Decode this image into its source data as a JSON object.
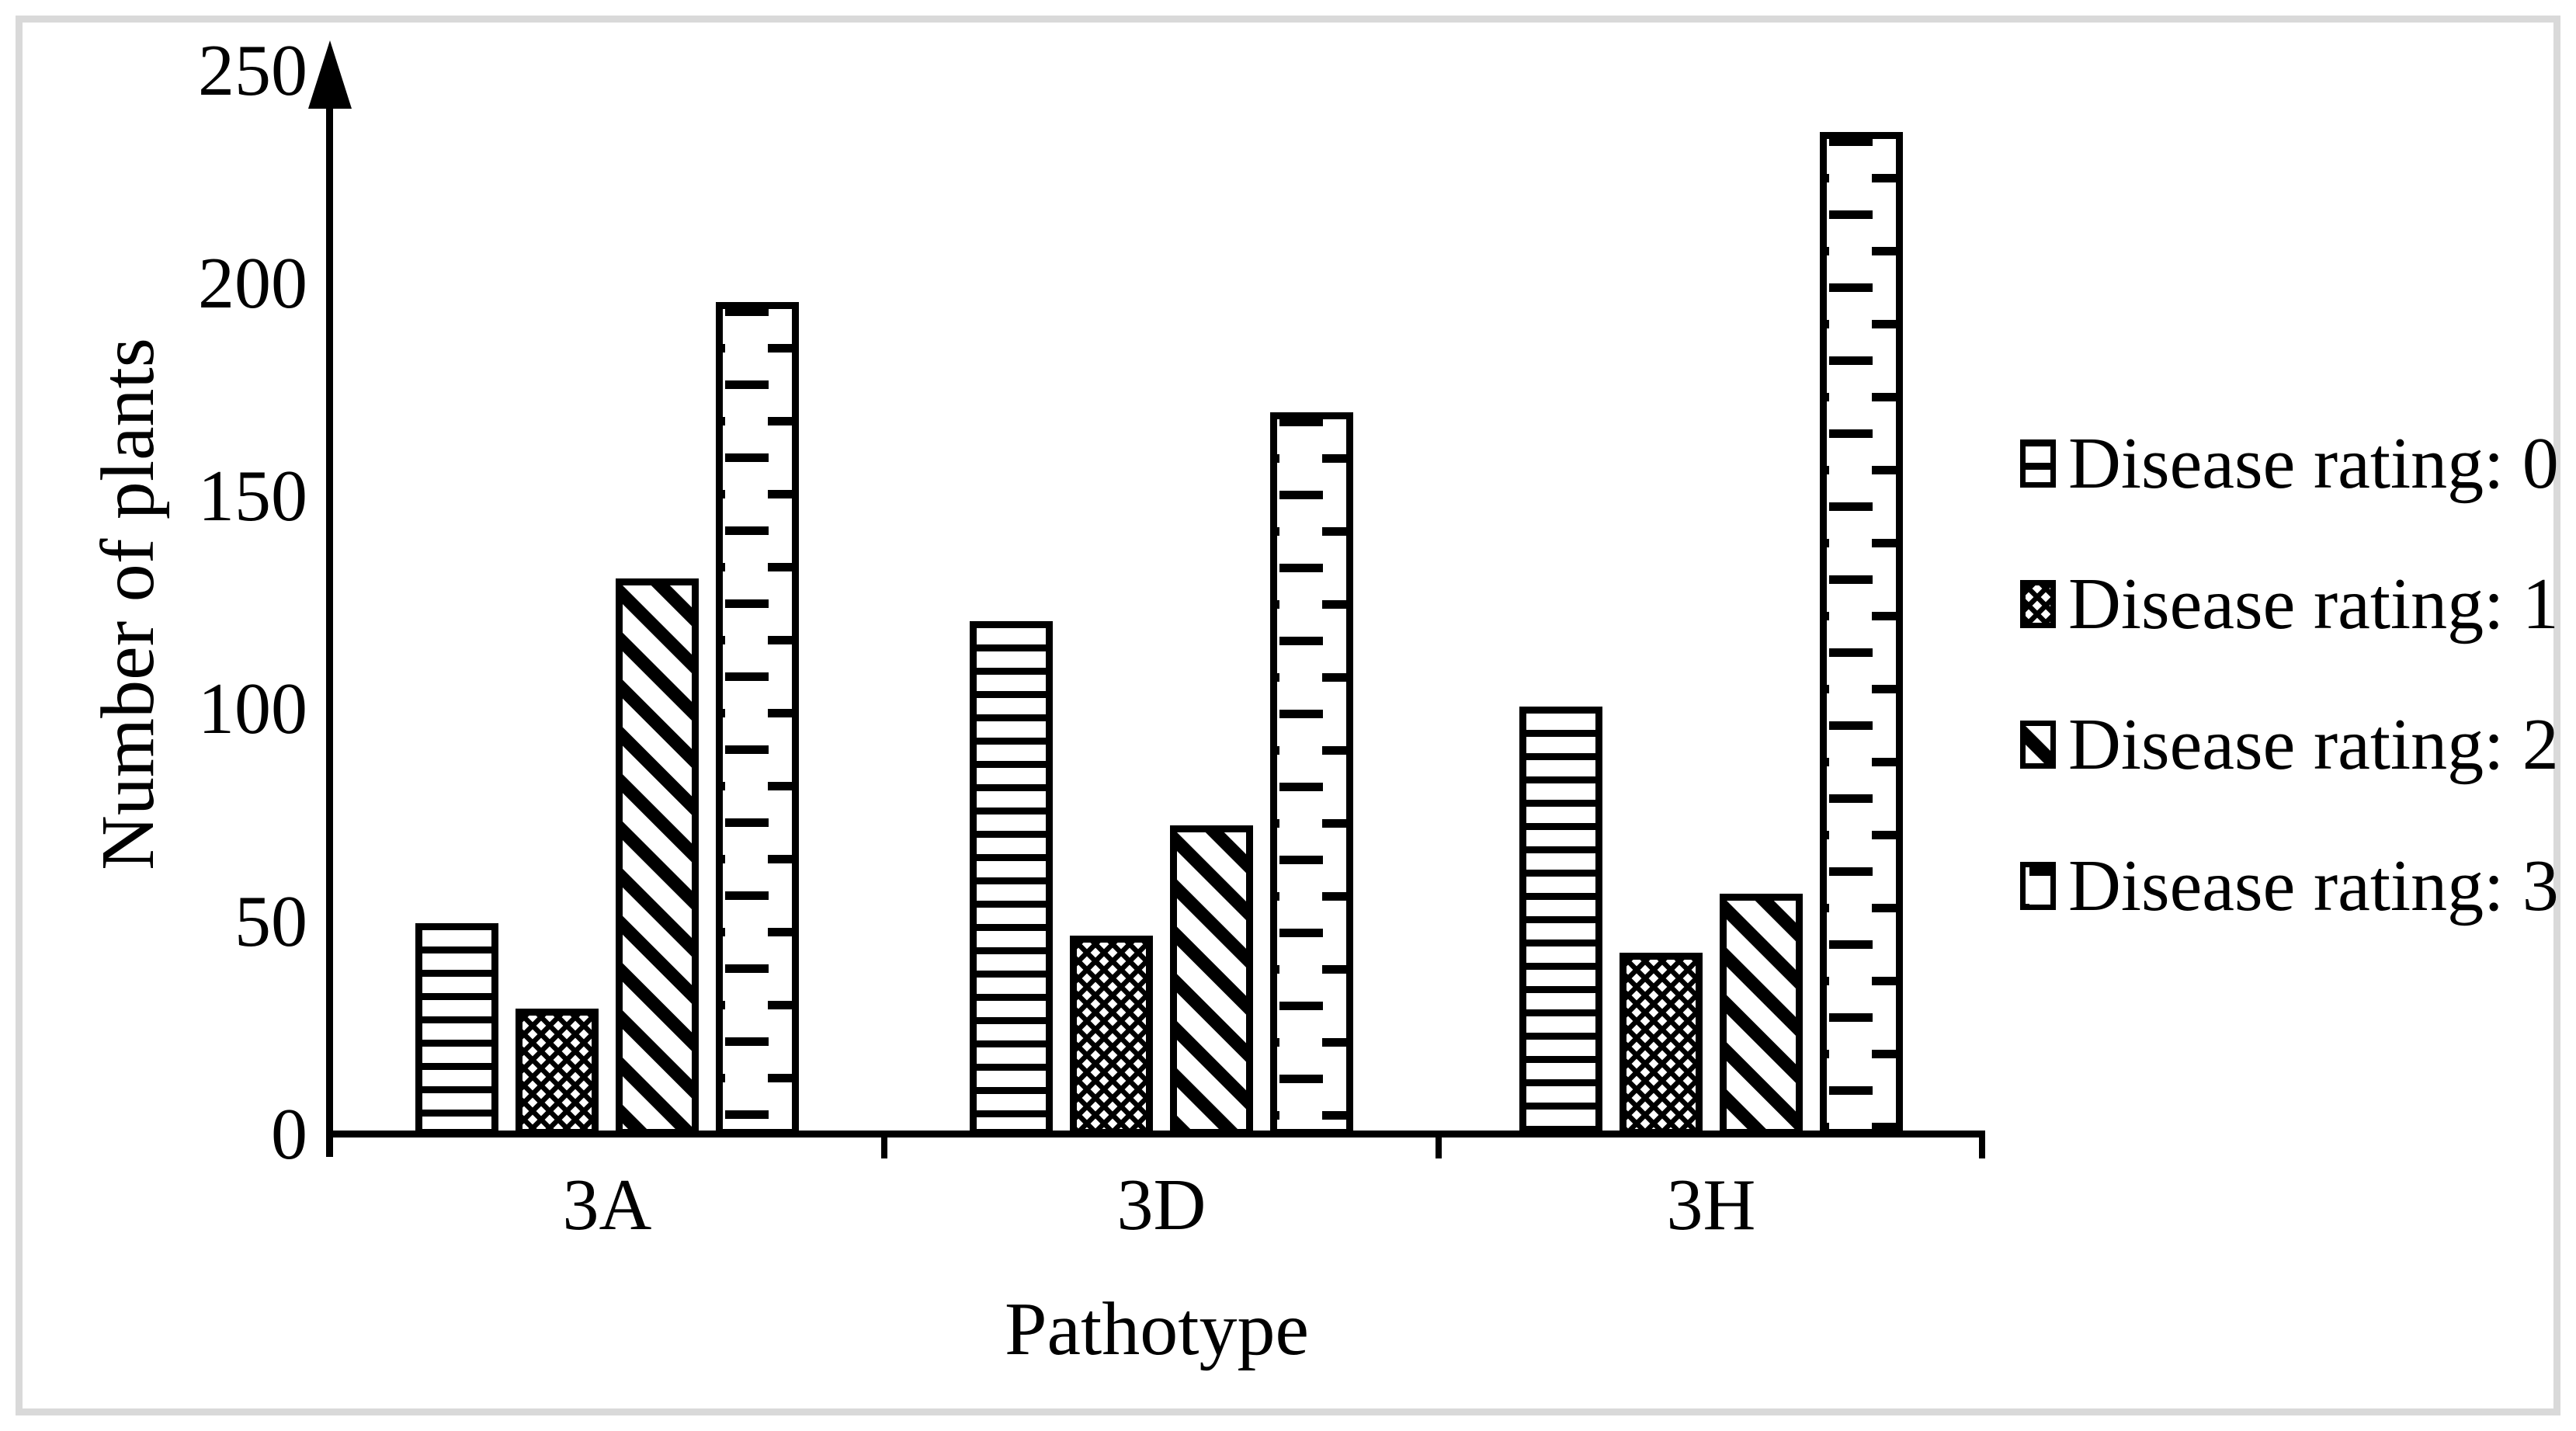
{
  "figure": {
    "background": "#ffffff",
    "frame_color": "#d9d9d9",
    "ink_color": "#000000"
  },
  "chart_data": {
    "type": "bar",
    "title": "",
    "xlabel": "Pathotype",
    "ylabel": "Number of plants",
    "categories": [
      "3A",
      "3D",
      "3H"
    ],
    "series": [
      {
        "name": "Disease rating: 0",
        "pattern": "horizontal-lines",
        "values": [
          50,
          121,
          101
        ]
      },
      {
        "name": "Disease rating: 1",
        "pattern": "diagonal-crosshatch",
        "values": [
          30,
          47,
          43
        ]
      },
      {
        "name": "Disease rating: 2",
        "pattern": "wide-downward-diagonal",
        "values": [
          131,
          73,
          57
        ]
      },
      {
        "name": "Disease rating: 3",
        "pattern": "dashed-horizontal-bricks",
        "values": [
          196,
          170,
          236
        ]
      }
    ],
    "ylim": [
      0,
      250
    ],
    "yticks": [
      0,
      50,
      100,
      150,
      200,
      250
    ],
    "legend_position": "right",
    "grid": false,
    "bar_fill": "#ffffff",
    "bar_edge": "#000000",
    "y_axis_arrow": true
  }
}
